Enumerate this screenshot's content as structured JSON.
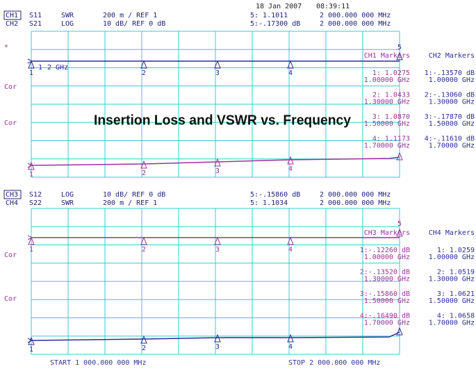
{
  "header": {
    "date": "18 Jan 2007",
    "time": "08:39:11"
  },
  "title": "Insertion Loss and VSWR vs. Frequency",
  "marker_numbers": [
    "1",
    "2",
    "3",
    "4",
    "5"
  ],
  "panels": [
    {
      "channels": [
        {
          "label": "CH1",
          "param": "S11",
          "format": "SWR",
          "scale": "200 m / REF 1",
          "marker5": "5: 1.1011",
          "marker5_freq": "2 000.000 000 MHz"
        },
        {
          "label": "CH2",
          "param": "S21",
          "format": "LOG",
          "scale": "10 dB/ REF 0 dB",
          "marker5": "5:-.17300 dB",
          "marker5_freq": "2 000.000 000 MHz"
        }
      ],
      "side_labels": [
        "*",
        "Cor",
        "Cor"
      ],
      "span_note": "2 GHz",
      "tables": [
        {
          "title": "CH1 Markers",
          "entries": [
            {
              "value": "1: 1.0275",
              "freq": "1.00000 GHz"
            },
            {
              "value": "2: 1.0433",
              "freq": "1.30000 GHz"
            },
            {
              "value": "3: 1.0870",
              "freq": "1.50000 GHz"
            },
            {
              "value": "4: 1.1173",
              "freq": "1.70000 GHz"
            }
          ]
        },
        {
          "title": "CH2 Markers",
          "entries": [
            {
              "value": "1:-.13570 dB",
              "freq": "1.00000 GHz"
            },
            {
              "value": "2:-.13060 dB",
              "freq": "1.30000 GHz"
            },
            {
              "value": "3:-.17870 dB",
              "freq": "1.50000 GHz"
            },
            {
              "value": "4:-.11610 dB",
              "freq": "1.70000 GHz"
            }
          ]
        }
      ]
    },
    {
      "channels": [
        {
          "label": "CH3",
          "param": "S12",
          "format": "LOG",
          "scale": "10 dB/ REF 0 dB",
          "marker5": "5:-.15860 dB",
          "marker5_freq": "2 000.000 000 MHz"
        },
        {
          "label": "CH4",
          "param": "S22",
          "format": "SWR",
          "scale": "200 m / REF 1",
          "marker5": "5: 1.1034",
          "marker5_freq": "2 000.000 000 MHz"
        }
      ],
      "side_labels": [
        "Cor",
        "Cor"
      ],
      "tables": [
        {
          "title": "CH3 Markers",
          "entries": [
            {
              "value": "1:-.12260 dB",
              "freq": "1.00000 GHz"
            },
            {
              "value": "2:-.13520 dB",
              "freq": "1.30000 GHz"
            },
            {
              "value": "3:-.15860 dB",
              "freq": "1.50000 GHz"
            },
            {
              "value": "4:-.16490 dB",
              "freq": "1.70000 GHz"
            }
          ]
        },
        {
          "title": "CH4 Markers",
          "entries": [
            {
              "value": "1: 1.0259",
              "freq": "1.00000 GHz"
            },
            {
              "value": "2: 1.0519",
              "freq": "1.30000 GHz"
            },
            {
              "value": "3: 1.0621",
              "freq": "1.50000 GHz"
            },
            {
              "value": "4: 1.0658",
              "freq": "1.70000 GHz"
            }
          ]
        }
      ]
    }
  ],
  "footer": {
    "start": "START 1 000.000 000 MHz",
    "stop": "STOP 2 000.000 000 MHz"
  }
}
